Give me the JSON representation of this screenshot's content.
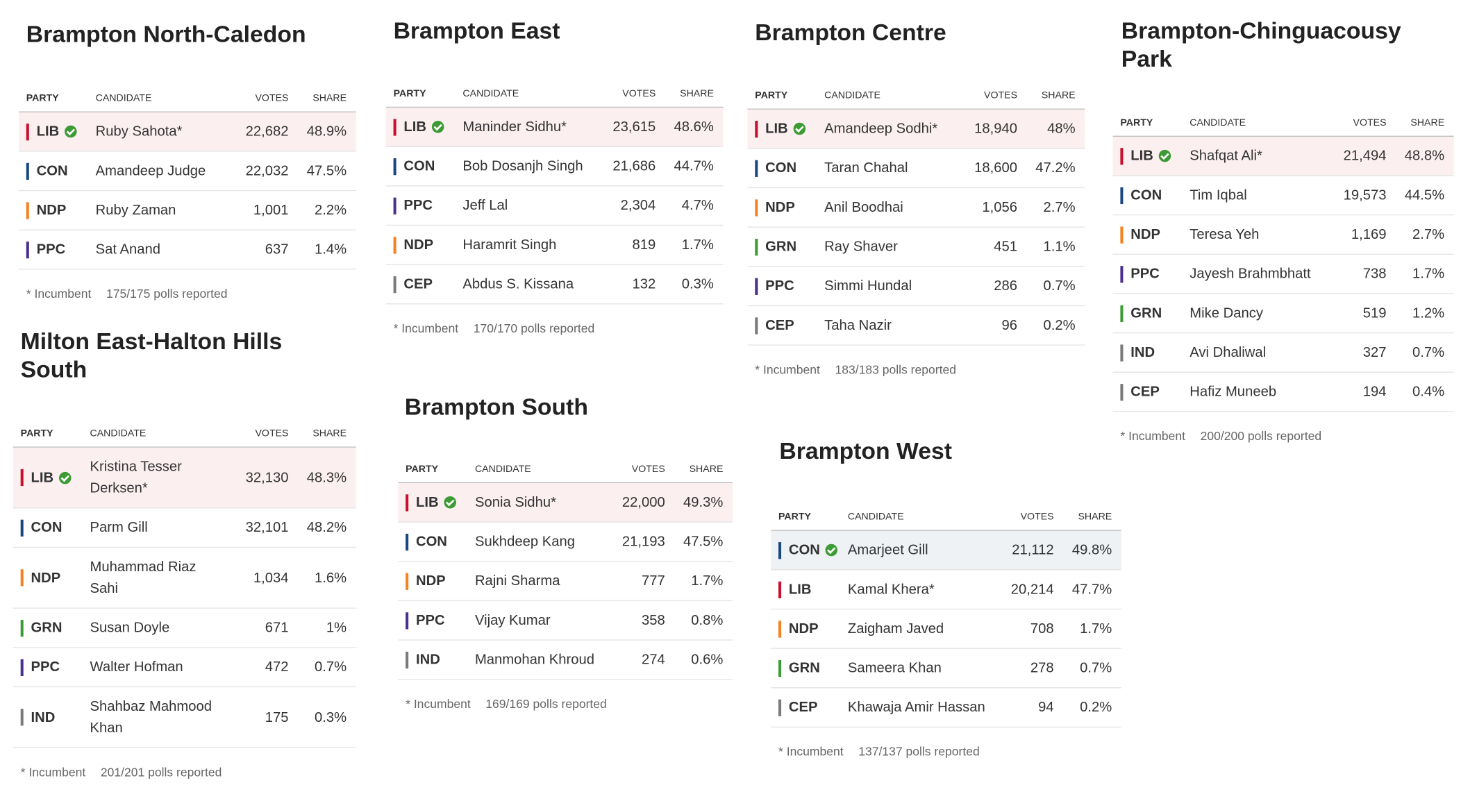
{
  "columns": [
    "PARTY",
    "CANDIDATE",
    "VOTES",
    "SHARE"
  ],
  "incumbent_note": "* Incumbent",
  "party_colors": {
    "LIB": "#c8102e",
    "CON": "#1a4782",
    "NDP": "#f58220",
    "PPC": "#4b2f8f",
    "GRN": "#3d9b35",
    "CEP": "#7a7a7a",
    "IND": "#7a7a7a"
  },
  "ridings": [
    {
      "title": "Brampton North-Caledon",
      "polls": "175/175 polls reported",
      "rows": [
        {
          "party": "LIB",
          "candidate": "Ruby Sahota*",
          "votes": "22,682",
          "share": "48.9%",
          "winner": true
        },
        {
          "party": "CON",
          "candidate": "Amandeep Judge",
          "votes": "22,032",
          "share": "47.5%"
        },
        {
          "party": "NDP",
          "candidate": "Ruby Zaman",
          "votes": "1,001",
          "share": "2.2%"
        },
        {
          "party": "PPC",
          "candidate": "Sat Anand",
          "votes": "637",
          "share": "1.4%"
        }
      ]
    },
    {
      "title": "Brampton East",
      "polls": "170/170 polls reported",
      "rows": [
        {
          "party": "LIB",
          "candidate": "Maninder Sidhu*",
          "votes": "23,615",
          "share": "48.6%",
          "winner": true
        },
        {
          "party": "CON",
          "candidate": "Bob Dosanjh Singh",
          "votes": "21,686",
          "share": "44.7%"
        },
        {
          "party": "PPC",
          "candidate": "Jeff Lal",
          "votes": "2,304",
          "share": "4.7%"
        },
        {
          "party": "NDP",
          "candidate": "Haramrit Singh",
          "votes": "819",
          "share": "1.7%"
        },
        {
          "party": "CEP",
          "candidate": "Abdus S. Kissana",
          "votes": "132",
          "share": "0.3%"
        }
      ]
    },
    {
      "title": "Brampton Centre",
      "polls": "183/183 polls reported",
      "rows": [
        {
          "party": "LIB",
          "candidate": "Amandeep Sodhi*",
          "votes": "18,940",
          "share": "48%",
          "winner": true
        },
        {
          "party": "CON",
          "candidate": "Taran Chahal",
          "votes": "18,600",
          "share": "47.2%"
        },
        {
          "party": "NDP",
          "candidate": "Anil Boodhai",
          "votes": "1,056",
          "share": "2.7%"
        },
        {
          "party": "GRN",
          "candidate": "Ray Shaver",
          "votes": "451",
          "share": "1.1%"
        },
        {
          "party": "PPC",
          "candidate": "Simmi Hundal",
          "votes": "286",
          "share": "0.7%"
        },
        {
          "party": "CEP",
          "candidate": "Taha Nazir",
          "votes": "96",
          "share": "0.2%"
        }
      ]
    },
    {
      "title": "Brampton-Chinguacousy Park",
      "polls": "200/200 polls reported",
      "rows": [
        {
          "party": "LIB",
          "candidate": "Shafqat Ali*",
          "votes": "21,494",
          "share": "48.8%",
          "winner": true
        },
        {
          "party": "CON",
          "candidate": "Tim Iqbal",
          "votes": "19,573",
          "share": "44.5%"
        },
        {
          "party": "NDP",
          "candidate": "Teresa Yeh",
          "votes": "1,169",
          "share": "2.7%"
        },
        {
          "party": "PPC",
          "candidate": "Jayesh Brahmbhatt",
          "votes": "738",
          "share": "1.7%"
        },
        {
          "party": "GRN",
          "candidate": "Mike Dancy",
          "votes": "519",
          "share": "1.2%"
        },
        {
          "party": "IND",
          "candidate": "Avi Dhaliwal",
          "votes": "327",
          "share": "0.7%"
        },
        {
          "party": "CEP",
          "candidate": "Hafiz Muneeb",
          "votes": "194",
          "share": "0.4%"
        }
      ]
    },
    {
      "title": "Milton East-Halton Hills South",
      "polls": "201/201 polls reported",
      "rows": [
        {
          "party": "LIB",
          "candidate": "Kristina Tesser Derksen*",
          "votes": "32,130",
          "share": "48.3%",
          "winner": true
        },
        {
          "party": "CON",
          "candidate": "Parm Gill",
          "votes": "32,101",
          "share": "48.2%"
        },
        {
          "party": "NDP",
          "candidate": "Muhammad Riaz Sahi",
          "votes": "1,034",
          "share": "1.6%"
        },
        {
          "party": "GRN",
          "candidate": "Susan Doyle",
          "votes": "671",
          "share": "1%"
        },
        {
          "party": "PPC",
          "candidate": "Walter Hofman",
          "votes": "472",
          "share": "0.7%"
        },
        {
          "party": "IND",
          "candidate": "Shahbaz Mahmood Khan",
          "votes": "175",
          "share": "0.3%"
        }
      ]
    },
    {
      "title": "Brampton South",
      "polls": "169/169 polls reported",
      "rows": [
        {
          "party": "LIB",
          "candidate": "Sonia Sidhu*",
          "votes": "22,000",
          "share": "49.3%",
          "winner": true
        },
        {
          "party": "CON",
          "candidate": "Sukhdeep Kang",
          "votes": "21,193",
          "share": "47.5%"
        },
        {
          "party": "NDP",
          "candidate": "Rajni Sharma",
          "votes": "777",
          "share": "1.7%"
        },
        {
          "party": "PPC",
          "candidate": "Vijay Kumar",
          "votes": "358",
          "share": "0.8%"
        },
        {
          "party": "IND",
          "candidate": "Manmohan Khroud",
          "votes": "274",
          "share": "0.6%"
        }
      ]
    },
    {
      "title": "Brampton West",
      "polls": "137/137 polls reported",
      "rows": [
        {
          "party": "CON",
          "candidate": "Amarjeet Gill",
          "votes": "21,112",
          "share": "49.8%",
          "winner": true
        },
        {
          "party": "LIB",
          "candidate": "Kamal Khera*",
          "votes": "20,214",
          "share": "47.7%"
        },
        {
          "party": "NDP",
          "candidate": "Zaigham Javed",
          "votes": "708",
          "share": "1.7%"
        },
        {
          "party": "GRN",
          "candidate": "Sameera Khan",
          "votes": "278",
          "share": "0.7%"
        },
        {
          "party": "CEP",
          "candidate": "Khawaja Amir Hassan",
          "votes": "94",
          "share": "0.2%"
        }
      ]
    }
  ]
}
